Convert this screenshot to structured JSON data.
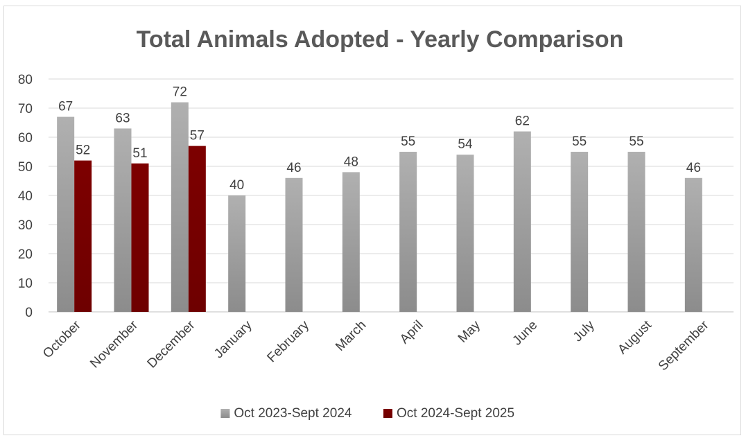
{
  "chart_data": {
    "type": "bar",
    "title": "Total Animals Adopted - Yearly Comparison",
    "xlabel": "",
    "ylabel": "",
    "ylim": [
      0,
      80
    ],
    "yticks": [
      0,
      10,
      20,
      30,
      40,
      50,
      60,
      70,
      80
    ],
    "grid": true,
    "legend_position": "bottom",
    "categories": [
      "October",
      "November",
      "December",
      "January",
      "February",
      "March",
      "April",
      "May",
      "June",
      "July",
      "August",
      "September"
    ],
    "series": [
      {
        "name": "Oct 2023-Sept 2024",
        "color": "#a6a6a6",
        "values": [
          67,
          63,
          72,
          40,
          46,
          48,
          55,
          54,
          62,
          55,
          55,
          46
        ]
      },
      {
        "name": "Oct 2024-Sept 2025",
        "color": "#7b0000",
        "values": [
          52,
          51,
          57,
          null,
          null,
          null,
          null,
          null,
          null,
          null,
          null,
          null
        ]
      }
    ]
  }
}
